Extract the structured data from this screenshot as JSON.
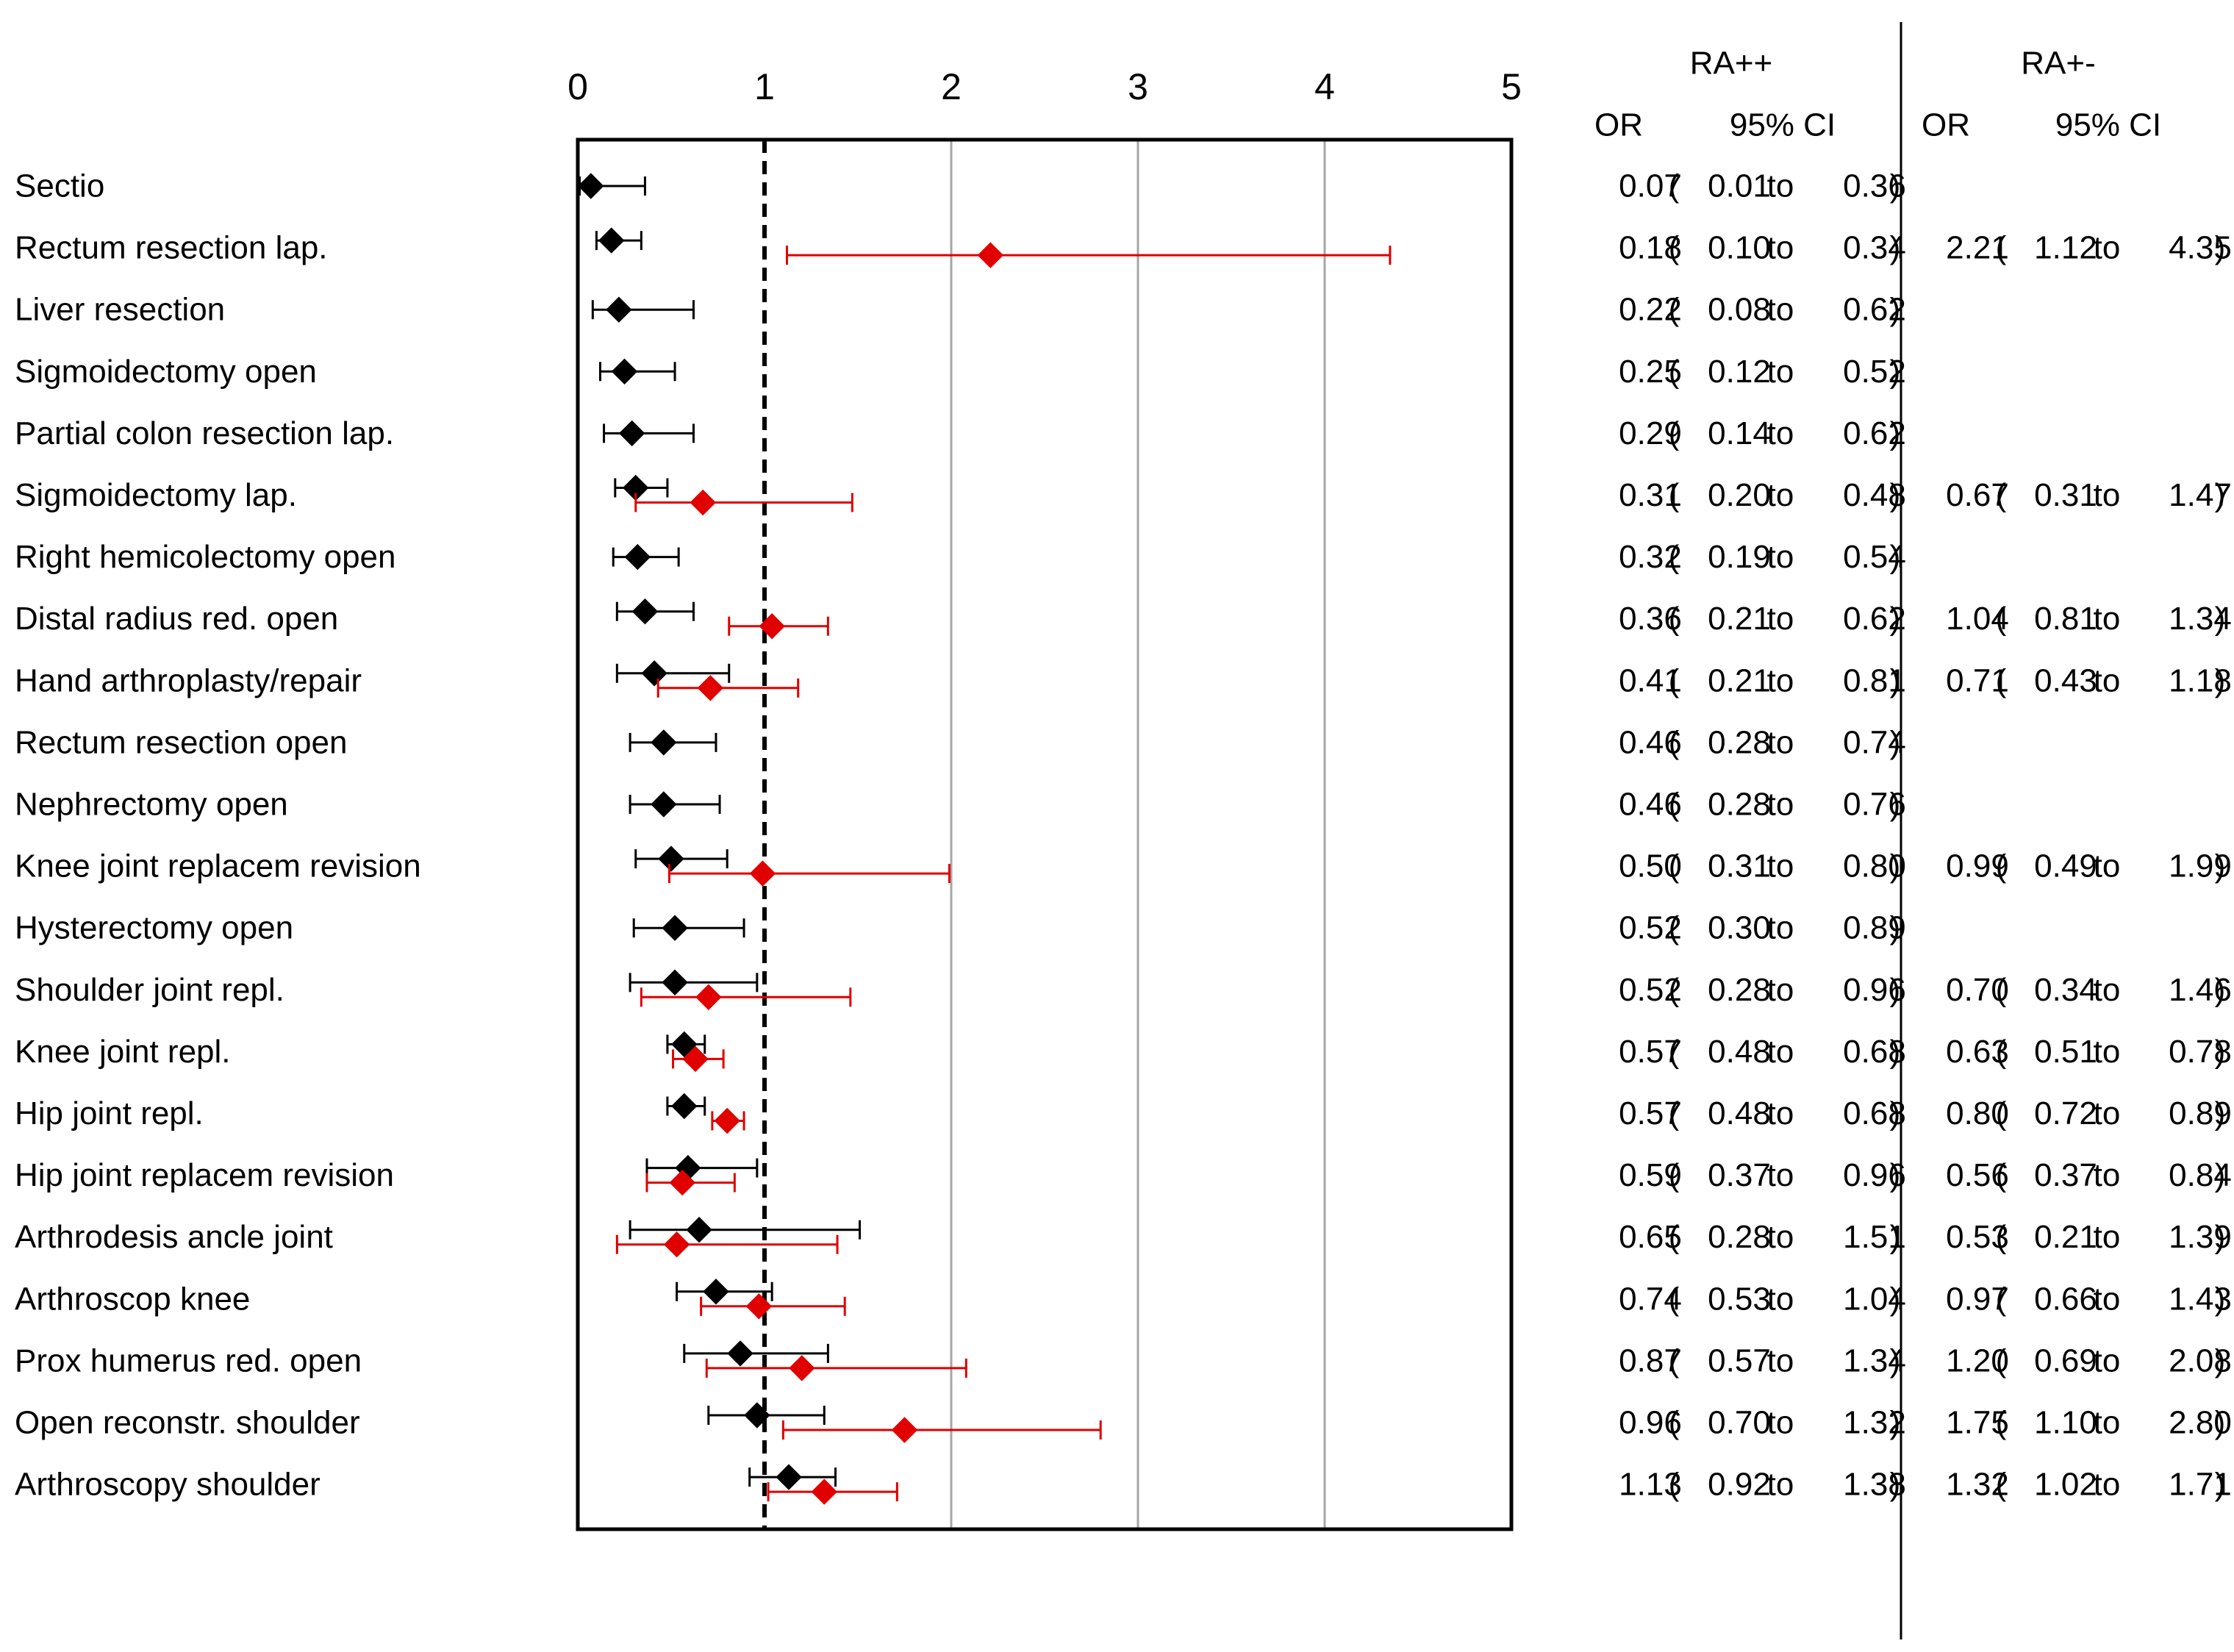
{
  "chart_data": {
    "type": "forest",
    "x_ticks": [
      "0",
      "1",
      "2",
      "3",
      "4",
      "5"
    ],
    "xlim": [
      0,
      5
    ],
    "reference_line": 1,
    "columns": {
      "group1": {
        "title": "RA++",
        "or_header": "OR",
        "ci_header": "95% CI"
      },
      "group2": {
        "title": "RA+-",
        "or_header": "OR",
        "ci_header": "95% CI"
      }
    },
    "ci_text": {
      "open": "(",
      "to": "to",
      "close": ")"
    },
    "series": [
      {
        "name": "RA++",
        "color": "#000000"
      },
      {
        "name": "RA+-",
        "color": "#e00000"
      }
    ],
    "rows": [
      {
        "label": "Sectio",
        "ra_pp": {
          "or": 0.07,
          "lo": 0.01,
          "hi": 0.36
        },
        "ra_pm": null
      },
      {
        "label": "Rectum resection lap.",
        "ra_pp": {
          "or": 0.18,
          "lo": 0.1,
          "hi": 0.34
        },
        "ra_pm": {
          "or": 2.21,
          "lo": 1.12,
          "hi": 4.35
        }
      },
      {
        "label": "Liver resection",
        "ra_pp": {
          "or": 0.22,
          "lo": 0.08,
          "hi": 0.62
        },
        "ra_pm": null
      },
      {
        "label": "Sigmoidectomy open",
        "ra_pp": {
          "or": 0.25,
          "lo": 0.12,
          "hi": 0.52
        },
        "ra_pm": null
      },
      {
        "label": "Partial colon resection lap.",
        "ra_pp": {
          "or": 0.29,
          "lo": 0.14,
          "hi": 0.62
        },
        "ra_pm": null
      },
      {
        "label": "Sigmoidectomy lap.",
        "ra_pp": {
          "or": 0.31,
          "lo": 0.2,
          "hi": 0.48
        },
        "ra_pm": {
          "or": 0.67,
          "lo": 0.31,
          "hi": 1.47
        }
      },
      {
        "label": "Right hemicolectomy open",
        "ra_pp": {
          "or": 0.32,
          "lo": 0.19,
          "hi": 0.54
        },
        "ra_pm": null
      },
      {
        "label": "Distal radius red. open",
        "ra_pp": {
          "or": 0.36,
          "lo": 0.21,
          "hi": 0.62
        },
        "ra_pm": {
          "or": 1.04,
          "lo": 0.81,
          "hi": 1.34
        }
      },
      {
        "label": "Hand arthroplasty/repair",
        "ra_pp": {
          "or": 0.41,
          "lo": 0.21,
          "hi": 0.81
        },
        "ra_pm": {
          "or": 0.71,
          "lo": 0.43,
          "hi": 1.18
        }
      },
      {
        "label": "Rectum resection open",
        "ra_pp": {
          "or": 0.46,
          "lo": 0.28,
          "hi": 0.74
        },
        "ra_pm": null
      },
      {
        "label": "Nephrectomy open",
        "ra_pp": {
          "or": 0.46,
          "lo": 0.28,
          "hi": 0.76
        },
        "ra_pm": null
      },
      {
        "label": "Knee joint replacem revision",
        "ra_pp": {
          "or": 0.5,
          "lo": 0.31,
          "hi": 0.8
        },
        "ra_pm": {
          "or": 0.99,
          "lo": 0.49,
          "hi": 1.99
        }
      },
      {
        "label": "Hysterectomy open",
        "ra_pp": {
          "or": 0.52,
          "lo": 0.3,
          "hi": 0.89
        },
        "ra_pm": null
      },
      {
        "label": "Shoulder joint repl.",
        "ra_pp": {
          "or": 0.52,
          "lo": 0.28,
          "hi": 0.96
        },
        "ra_pm": {
          "or": 0.7,
          "lo": 0.34,
          "hi": 1.46
        }
      },
      {
        "label": "Knee joint repl.",
        "ra_pp": {
          "or": 0.57,
          "lo": 0.48,
          "hi": 0.68
        },
        "ra_pm": {
          "or": 0.63,
          "lo": 0.51,
          "hi": 0.78
        }
      },
      {
        "label": "Hip joint repl.",
        "ra_pp": {
          "or": 0.57,
          "lo": 0.48,
          "hi": 0.68
        },
        "ra_pm": {
          "or": 0.8,
          "lo": 0.72,
          "hi": 0.89
        }
      },
      {
        "label": "Hip joint replacem revision",
        "ra_pp": {
          "or": 0.59,
          "lo": 0.37,
          "hi": 0.96
        },
        "ra_pm": {
          "or": 0.56,
          "lo": 0.37,
          "hi": 0.84
        }
      },
      {
        "label": "Arthrodesis ancle joint",
        "ra_pp": {
          "or": 0.65,
          "lo": 0.28,
          "hi": 1.51
        },
        "ra_pm": {
          "or": 0.53,
          "lo": 0.21,
          "hi": 1.39
        }
      },
      {
        "label": "Arthroscop knee",
        "ra_pp": {
          "or": 0.74,
          "lo": 0.53,
          "hi": 1.04
        },
        "ra_pm": {
          "or": 0.97,
          "lo": 0.66,
          "hi": 1.43
        }
      },
      {
        "label": "Prox humerus red. open",
        "ra_pp": {
          "or": 0.87,
          "lo": 0.57,
          "hi": 1.34
        },
        "ra_pm": {
          "or": 1.2,
          "lo": 0.69,
          "hi": 2.08
        }
      },
      {
        "label": "Open reconstr. shoulder",
        "ra_pp": {
          "or": 0.96,
          "lo": 0.7,
          "hi": 1.32
        },
        "ra_pm": {
          "or": 1.75,
          "lo": 1.1,
          "hi": 2.8
        }
      },
      {
        "label": "Arthroscopy shoulder",
        "ra_pp": {
          "or": 1.13,
          "lo": 0.92,
          "hi": 1.38
        },
        "ra_pm": {
          "or": 1.32,
          "lo": 1.02,
          "hi": 1.71
        }
      }
    ]
  }
}
